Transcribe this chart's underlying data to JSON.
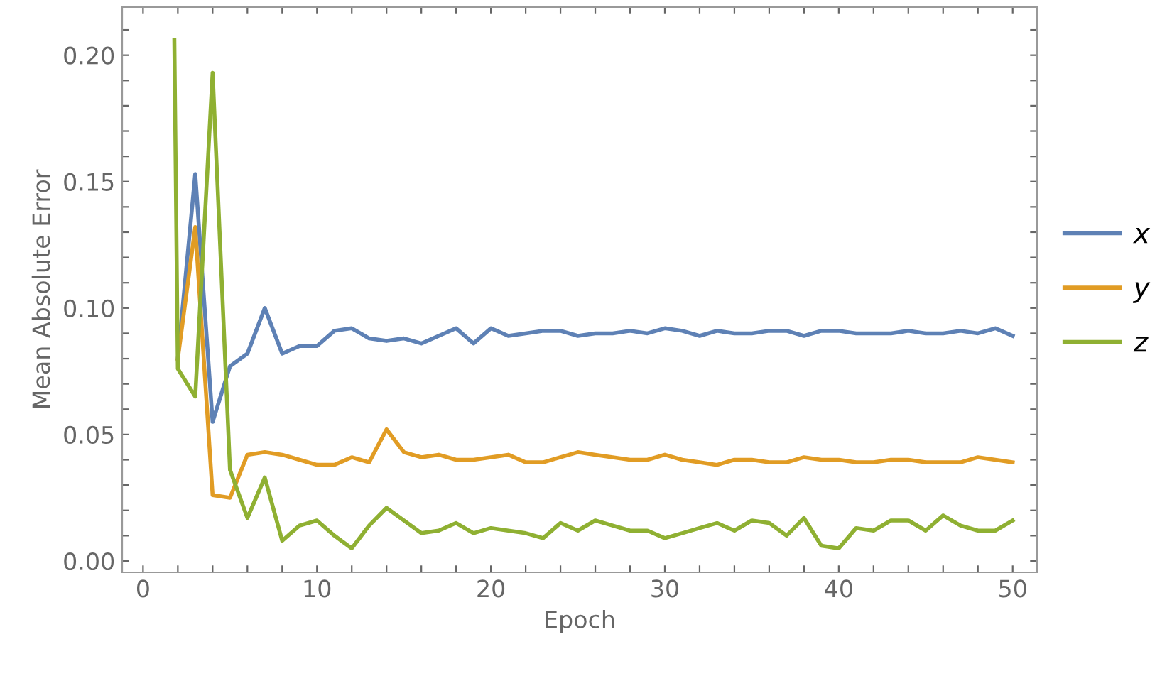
{
  "chart_data": {
    "type": "line",
    "xlabel": "Epoch",
    "ylabel": "Mean Absolute Error",
    "x": [
      2,
      3,
      4,
      5,
      6,
      7,
      8,
      9,
      10,
      11,
      12,
      13,
      14,
      15,
      16,
      17,
      18,
      19,
      20,
      21,
      22,
      23,
      24,
      25,
      26,
      27,
      28,
      29,
      30,
      31,
      32,
      33,
      34,
      35,
      36,
      37,
      38,
      39,
      40,
      41,
      42,
      43,
      44,
      45,
      46,
      47,
      48,
      49,
      50
    ],
    "series": [
      {
        "name": "x",
        "color": "#5e81b5",
        "values": [
          0.08,
          0.153,
          0.055,
          0.077,
          0.082,
          0.1,
          0.082,
          0.085,
          0.085,
          0.091,
          0.092,
          0.088,
          0.087,
          0.088,
          0.086,
          0.089,
          0.092,
          0.086,
          0.092,
          0.089,
          0.09,
          0.091,
          0.091,
          0.089,
          0.09,
          0.09,
          0.091,
          0.09,
          0.092,
          0.091,
          0.089,
          0.091,
          0.09,
          0.09,
          0.091,
          0.091,
          0.089,
          0.091,
          0.091,
          0.09,
          0.09,
          0.09,
          0.091,
          0.09,
          0.09,
          0.091,
          0.09,
          0.092,
          0.089
        ]
      },
      {
        "name": "y",
        "color": "#e19c24",
        "values": [
          0.08,
          0.132,
          0.026,
          0.025,
          0.042,
          0.043,
          0.042,
          0.04,
          0.038,
          0.038,
          0.041,
          0.039,
          0.052,
          0.043,
          0.041,
          0.042,
          0.04,
          0.04,
          0.041,
          0.042,
          0.039,
          0.039,
          0.041,
          0.043,
          0.042,
          0.041,
          0.04,
          0.04,
          0.042,
          0.04,
          0.039,
          0.038,
          0.04,
          0.04,
          0.039,
          0.039,
          0.041,
          0.04,
          0.04,
          0.039,
          0.039,
          0.04,
          0.04,
          0.039,
          0.039,
          0.039,
          0.041,
          0.04,
          0.039
        ]
      },
      {
        "name": "z",
        "color": "#8fb032",
        "x": [
          1.8,
          2,
          3,
          4,
          5,
          6,
          7,
          8,
          9,
          10,
          11,
          12,
          13,
          14,
          15,
          16,
          17,
          18,
          19,
          20,
          21,
          22,
          23,
          24,
          25,
          26,
          27,
          28,
          29,
          30,
          31,
          32,
          33,
          34,
          35,
          36,
          37,
          38,
          39,
          40,
          41,
          42,
          43,
          44,
          45,
          46,
          47,
          48,
          49,
          50
        ],
        "values": [
          0.206,
          0.076,
          0.065,
          0.193,
          0.036,
          0.017,
          0.033,
          0.008,
          0.014,
          0.016,
          0.01,
          0.005,
          0.014,
          0.021,
          0.016,
          0.011,
          0.012,
          0.015,
          0.011,
          0.013,
          0.012,
          0.011,
          0.009,
          0.015,
          0.012,
          0.016,
          0.014,
          0.012,
          0.012,
          0.009,
          0.011,
          0.013,
          0.015,
          0.012,
          0.016,
          0.015,
          0.01,
          0.017,
          0.006,
          0.005,
          0.013,
          0.012,
          0.016,
          0.016,
          0.012,
          0.018,
          0.014,
          0.012,
          0.012,
          0.016
        ]
      }
    ],
    "xlim": [
      -1.2,
      51.4
    ],
    "ylim": [
      -0.0045,
      0.219
    ],
    "xticks": [
      0,
      {
        "value": 2,
        "label": null
      },
      {
        "value": 4,
        "label": null
      },
      {
        "value": 6,
        "label": null
      },
      {
        "value": 8,
        "label": null
      },
      10,
      {
        "value": 12,
        "label": null
      },
      {
        "value": 14,
        "label": null
      },
      {
        "value": 16,
        "label": null
      },
      {
        "value": 18,
        "label": null
      },
      20,
      {
        "value": 22,
        "label": null
      },
      {
        "value": 24,
        "label": null
      },
      {
        "value": 26,
        "label": null
      },
      {
        "value": 28,
        "label": null
      },
      30,
      {
        "value": 32,
        "label": null
      },
      {
        "value": 34,
        "label": null
      },
      {
        "value": 36,
        "label": null
      },
      {
        "value": 38,
        "label": null
      },
      40,
      {
        "value": 42,
        "label": null
      },
      {
        "value": 44,
        "label": null
      },
      {
        "value": 46,
        "label": null
      },
      {
        "value": 48,
        "label": null
      },
      50
    ],
    "yticks": [
      {
        "value": 0,
        "label": "0.00"
      },
      {
        "value": 0.01,
        "label": null
      },
      {
        "value": 0.02,
        "label": null
      },
      {
        "value": 0.03,
        "label": null
      },
      {
        "value": 0.04,
        "label": null
      },
      {
        "value": 0.05,
        "label": "0.05"
      },
      {
        "value": 0.06,
        "label": null
      },
      {
        "value": 0.07,
        "label": null
      },
      {
        "value": 0.08,
        "label": null
      },
      {
        "value": 0.09,
        "label": null
      },
      {
        "value": 0.1,
        "label": "0.10"
      },
      {
        "value": 0.11,
        "label": null
      },
      {
        "value": 0.12,
        "label": null
      },
      {
        "value": 0.13,
        "label": null
      },
      {
        "value": 0.14,
        "label": null
      },
      {
        "value": 0.15,
        "label": "0.15"
      },
      {
        "value": 0.16,
        "label": null
      },
      {
        "value": 0.17,
        "label": null
      },
      {
        "value": 0.18,
        "label": null
      },
      {
        "value": 0.19,
        "label": null
      },
      {
        "value": 0.2,
        "label": "0.20"
      },
      {
        "value": 0.21,
        "label": null
      }
    ],
    "grid": false,
    "legend": "right",
    "marker": "none",
    "line_style": "solid"
  }
}
